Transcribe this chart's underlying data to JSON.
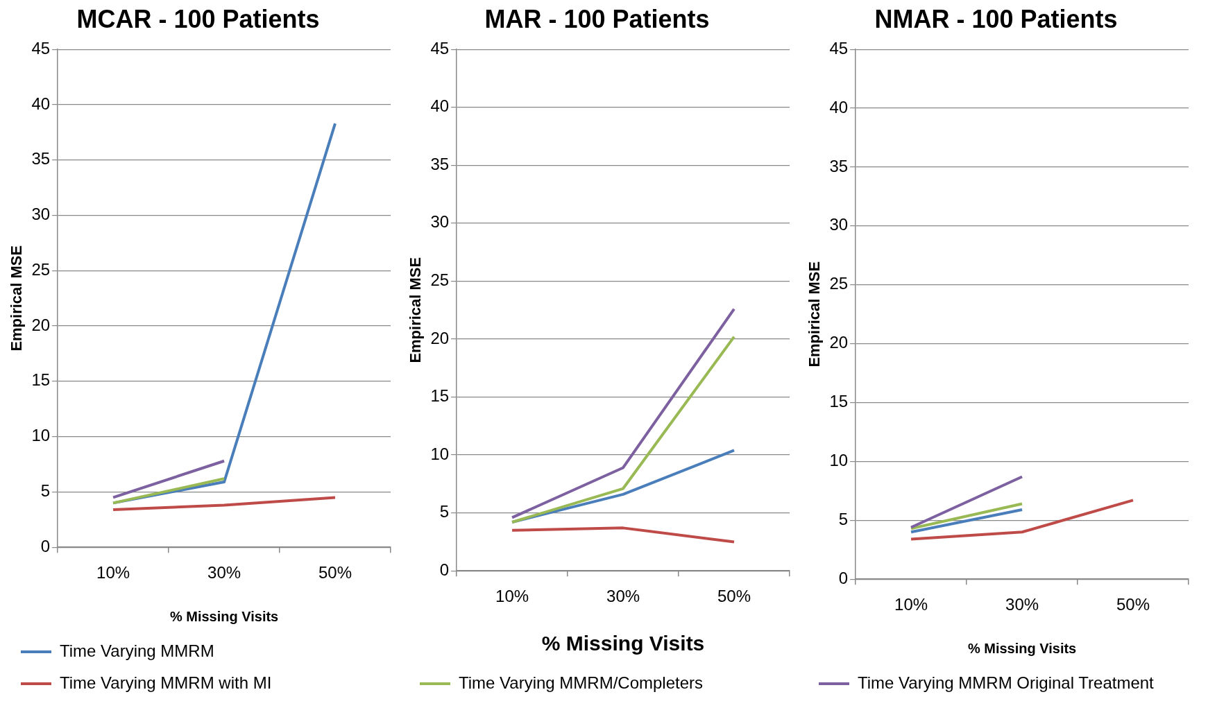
{
  "chart_data": [
    {
      "type": "line",
      "title": "MCAR - 100 Patients",
      "xlabel": "% Missing Visits",
      "ylabel": "Empirical MSE",
      "categories": [
        "10%",
        "30%",
        "50%"
      ],
      "ylim": [
        0,
        45
      ],
      "yticks": [
        0,
        5,
        10,
        15,
        20,
        25,
        30,
        35,
        40,
        45
      ],
      "grid": "y",
      "legend": "bottom",
      "marker": "none",
      "line_style": "solid",
      "series": [
        {
          "name": "Time Varying MMRM",
          "color": "#4a7ebb",
          "values": [
            4.0,
            5.9,
            38.3
          ]
        },
        {
          "name": "Time Varying MMRM with MI",
          "color": "#be4b48",
          "values": [
            3.4,
            3.8,
            4.5
          ]
        },
        {
          "color": "#98b954",
          "values": [
            4.0,
            6.2,
            null
          ]
        },
        {
          "color": "#7d60a0",
          "values": [
            4.5,
            7.8,
            null
          ]
        }
      ]
    },
    {
      "type": "line",
      "title": "MAR - 100 Patients",
      "xlabel": "% Missing Visits",
      "ylabel": "Empirical MSE",
      "categories": [
        "10%",
        "30%",
        "50%"
      ],
      "ylim": [
        0,
        45
      ],
      "yticks": [
        0,
        5,
        10,
        15,
        20,
        25,
        30,
        35,
        40,
        45
      ],
      "grid": "y",
      "legend": "bottom",
      "marker": "none",
      "line_style": "solid",
      "series": [
        {
          "color": "#4a7ebb",
          "values": [
            4.2,
            6.6,
            10.4
          ]
        },
        {
          "color": "#be4b48",
          "values": [
            3.5,
            3.7,
            2.5
          ]
        },
        {
          "name": "Time Varying MMRM/Completers",
          "color": "#98b954",
          "values": [
            4.2,
            7.1,
            20.2
          ]
        },
        {
          "color": "#7d60a0",
          "values": [
            4.6,
            8.9,
            22.6
          ]
        }
      ]
    },
    {
      "type": "line",
      "title": "NMAR - 100 Patients",
      "xlabel": "% Missing Visits",
      "ylabel": "Empirical MSE",
      "categories": [
        "10%",
        "30%",
        "50%"
      ],
      "ylim": [
        0,
        45
      ],
      "yticks": [
        0,
        5,
        10,
        15,
        20,
        25,
        30,
        35,
        40,
        45
      ],
      "grid": "y",
      "legend": "bottom",
      "marker": "none",
      "line_style": "solid",
      "series": [
        {
          "color": "#4a7ebb",
          "values": [
            4.0,
            5.9,
            null
          ]
        },
        {
          "color": "#be4b48",
          "values": [
            3.4,
            4.0,
            6.7
          ]
        },
        {
          "color": "#98b954",
          "values": [
            4.3,
            6.4,
            null
          ]
        },
        {
          "name": "Time Varying MMRM Original Treatment",
          "color": "#7d60a0",
          "values": [
            4.4,
            8.7,
            null
          ]
        }
      ]
    }
  ]
}
